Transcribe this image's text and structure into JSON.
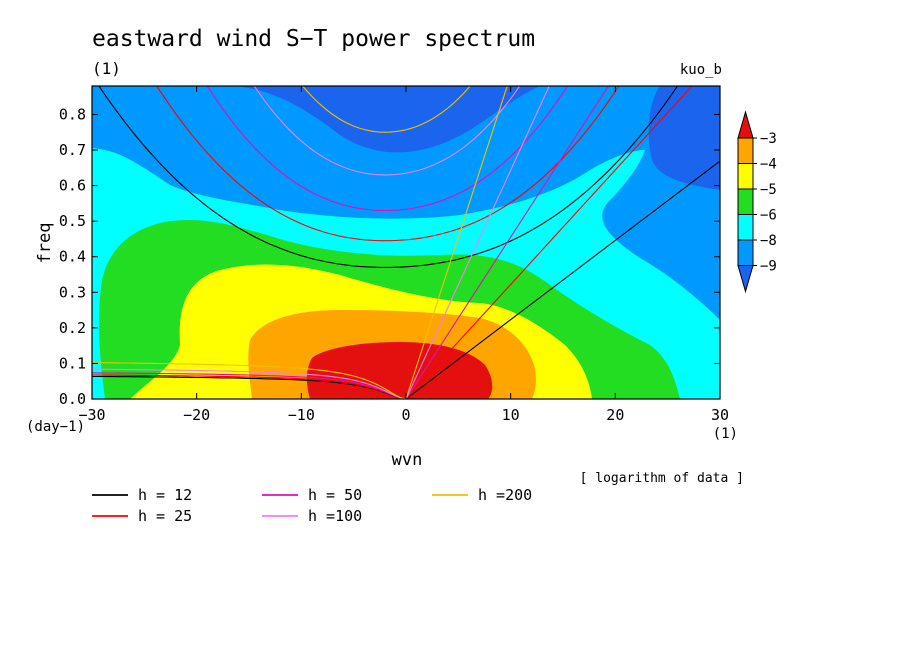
{
  "chart_data": {
    "type": "heatmap",
    "title": "eastward wind S−T power spectrum",
    "subtitle": "(1)",
    "dataset_label": "kuo_b",
    "xlabel": "wvn",
    "ylabel": "freq",
    "x_unit": "(1)",
    "y_unit": "(day−1)",
    "xlim": [
      -30,
      30
    ],
    "ylim": [
      0,
      0.88
    ],
    "x_ticks": [
      -30,
      -20,
      -10,
      0,
      10,
      20,
      30
    ],
    "y_ticks": [
      0.0,
      0.1,
      0.2,
      0.3,
      0.4,
      0.5,
      0.6,
      0.7,
      0.8
    ],
    "color_note": "[ logarithm of data ]",
    "colorbar": {
      "labels": [
        "−3",
        "−4",
        "−5",
        "−6",
        "−8",
        "−9"
      ],
      "colors": [
        "#e41010",
        "#ffa500",
        "#ffff00",
        "#22dd22",
        "#00ffff",
        "#0099ff",
        "#1a64ee"
      ]
    },
    "level_colors": {
      "lt-9": "#1a64ee",
      "-9_-8": "#0099ff",
      "-8_-6": "#00ffff",
      "-6_-5": "#22dd22",
      "-5_-4": "#ffff00",
      "-4_-3": "#ffa500",
      "gt-3": "#e41010"
    },
    "legend": [
      {
        "label": "h = 12",
        "color": "#000000"
      },
      {
        "label": "h = 25",
        "color": "#ff0000"
      },
      {
        "label": "h = 50",
        "color": "#e010b0"
      },
      {
        "label": "h =100",
        "color": "#f080f0"
      },
      {
        "label": "h =200",
        "color": "#f0c000"
      }
    ],
    "dispersion_curves": [
      {
        "h": 12,
        "color": "#000000",
        "kelvin_slope": 0.0223,
        "ig_min": 0.37,
        "ig_curv": 0.00043
      },
      {
        "h": 25,
        "color": "#ff0000",
        "kelvin_slope": 0.0322,
        "ig_min": 0.445,
        "ig_curv": 0.00062
      },
      {
        "h": 50,
        "color": "#e010b0",
        "kelvin_slope": 0.0455,
        "ig_min": 0.53,
        "ig_curv": 0.00088
      },
      {
        "h": 100,
        "color": "#f080f0",
        "kelvin_slope": 0.0643,
        "ig_min": 0.63,
        "ig_curv": 0.00124
      },
      {
        "h": 200,
        "color": "#f0c000",
        "kelvin_slope": 0.091,
        "ig_min": 0.75,
        "ig_curv": 0.00175
      }
    ]
  }
}
